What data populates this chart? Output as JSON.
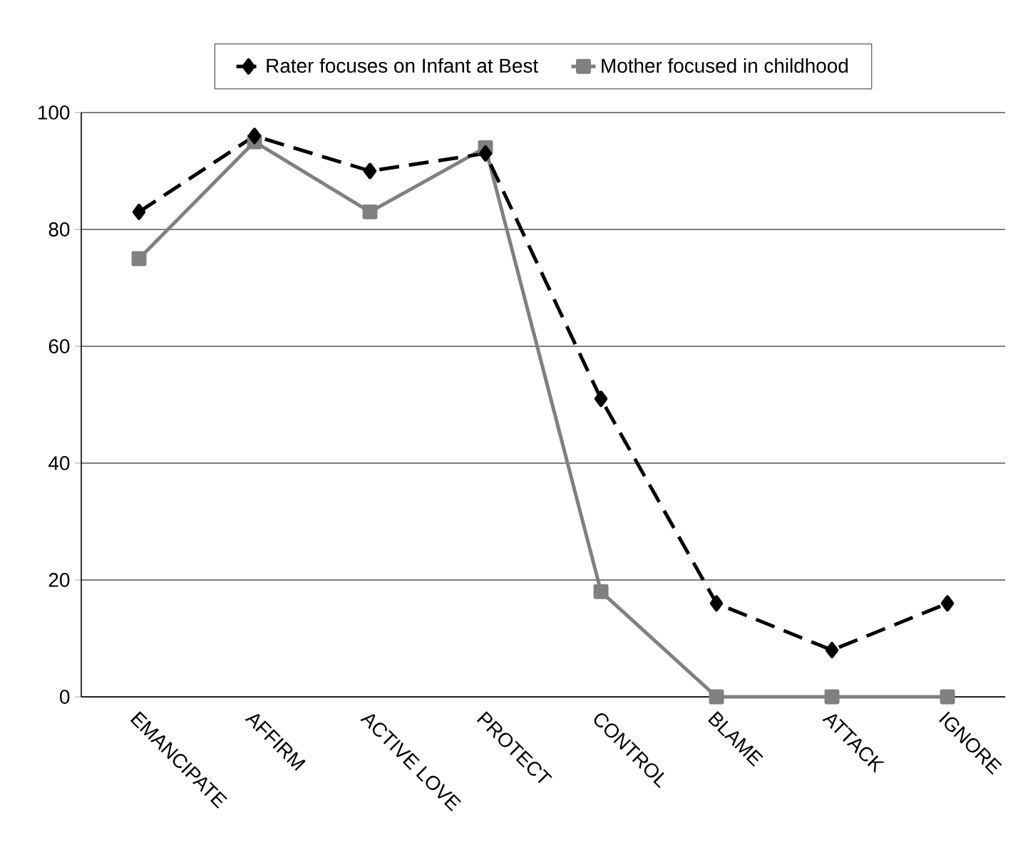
{
  "chart_data": {
    "type": "line",
    "categories": [
      "EMANCIPATE",
      "AFFIRM",
      "ACTIVE LOVE",
      "PROTECT",
      "CONTROL",
      "BLAME",
      "ATTACK",
      "IGNORE"
    ],
    "series": [
      {
        "name": "Rater focuses on Infant at Best",
        "color": "#000000",
        "marker": "diamond",
        "line_style": "dashed",
        "values": [
          83,
          96,
          90,
          93,
          51,
          16,
          8,
          16
        ]
      },
      {
        "name": "Mother focused in childhood",
        "color": "#808080",
        "marker": "square",
        "line_style": "solid",
        "values": [
          75,
          95,
          83,
          94,
          18,
          0,
          0,
          0
        ]
      }
    ],
    "ylim": [
      0,
      100
    ],
    "yticks": [
      0,
      20,
      40,
      60,
      80,
      100
    ],
    "grid": "y",
    "legend": "top"
  }
}
